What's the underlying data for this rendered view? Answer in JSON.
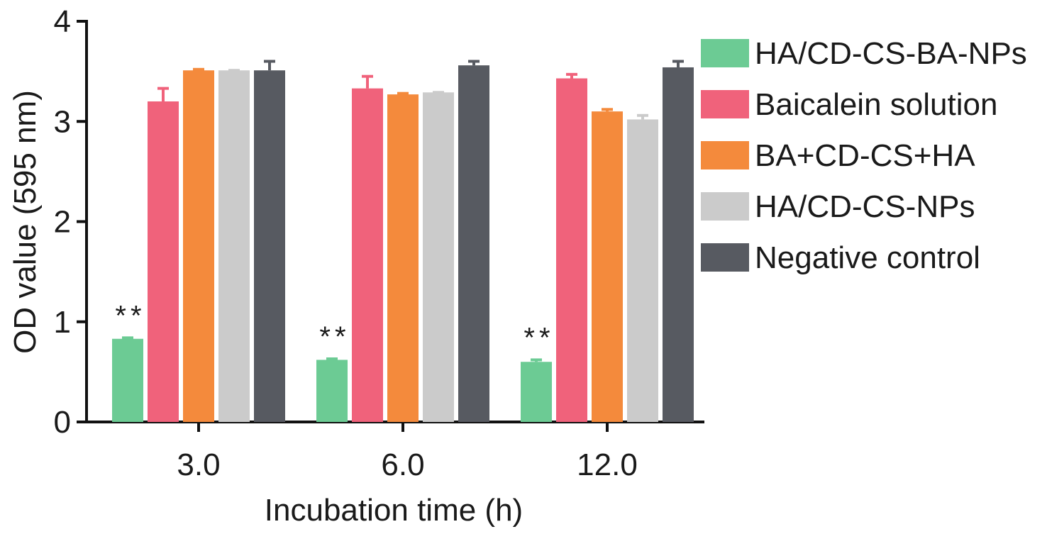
{
  "chart_data": {
    "type": "bar",
    "xlabel": "Incubation time (h)",
    "ylabel": "OD value (595 nm)",
    "ylim": [
      0,
      4
    ],
    "y_ticks": [
      "0",
      "1",
      "2",
      "3",
      "4"
    ],
    "categories": [
      "3.0",
      "6.0",
      "12.0"
    ],
    "series": [
      {
        "name": "HA/CD-CS-BA-NPs",
        "color": "#6ccb94",
        "values": [
          0.83,
          0.62,
          0.6
        ],
        "errors": [
          0.01,
          0.01,
          0.02
        ]
      },
      {
        "name": "Baicalein solution",
        "color": "#f0627b",
        "values": [
          3.2,
          3.33,
          3.43
        ],
        "errors": [
          0.13,
          0.12,
          0.04
        ]
      },
      {
        "name": "BA+CD-CS+HA",
        "color": "#f48a3c",
        "values": [
          3.51,
          3.27,
          3.1
        ],
        "errors": [
          0.01,
          0.01,
          0.02
        ]
      },
      {
        "name": "HA/CD-CS-NPs",
        "color": "#cbcbcb",
        "values": [
          3.51,
          3.29,
          3.02
        ],
        "errors": [
          0.0,
          0.0,
          0.04
        ]
      },
      {
        "name": "Negative control",
        "color": "#575a61",
        "values": [
          3.51,
          3.56,
          3.54
        ],
        "errors": [
          0.09,
          0.04,
          0.06
        ]
      }
    ],
    "annotations": [
      {
        "category": "3.0",
        "text": "**"
      },
      {
        "category": "6.0",
        "text": "**"
      },
      {
        "category": "12.0",
        "text": "**"
      }
    ],
    "legend_position": "right",
    "grid": false
  }
}
